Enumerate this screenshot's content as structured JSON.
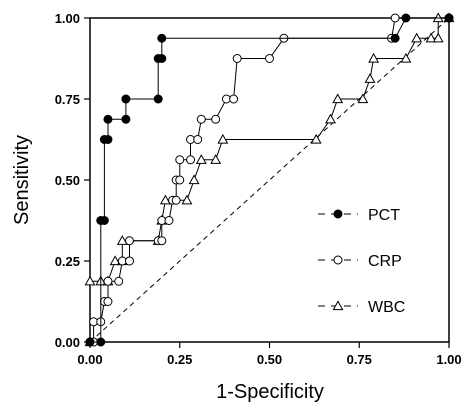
{
  "chart_data": {
    "type": "line",
    "title": "",
    "xlabel": "1-Specificity",
    "ylabel": "Sensitivity",
    "xlim": [
      0,
      1
    ],
    "ylim": [
      0,
      1
    ],
    "grid": false,
    "legend_position": "bottom-right",
    "x_ticks": [
      "0.00",
      "0.25",
      "0.50",
      "0.75",
      "1.00"
    ],
    "y_ticks": [
      "0.00",
      "0.25",
      "0.50",
      "0.75",
      "1.00"
    ],
    "series": [
      {
        "name": "PCT",
        "marker": "filled-circle",
        "line": "solid",
        "color": "#000000",
        "points": [
          [
            0.0,
            0.0
          ],
          [
            0.03,
            0.0
          ],
          [
            0.03,
            0.375
          ],
          [
            0.04,
            0.375
          ],
          [
            0.04,
            0.625
          ],
          [
            0.05,
            0.625
          ],
          [
            0.05,
            0.6875
          ],
          [
            0.1,
            0.6875
          ],
          [
            0.1,
            0.75
          ],
          [
            0.19,
            0.75
          ],
          [
            0.19,
            0.875
          ],
          [
            0.2,
            0.875
          ],
          [
            0.2,
            0.9375
          ],
          [
            0.85,
            0.9375
          ],
          [
            0.88,
            1.0
          ],
          [
            1.0,
            1.0
          ]
        ]
      },
      {
        "name": "CRP",
        "marker": "open-circle",
        "line": "solid",
        "color": "#000000",
        "points": [
          [
            0.0,
            0.0
          ],
          [
            0.01,
            0.0
          ],
          [
            0.01,
            0.0625
          ],
          [
            0.03,
            0.0625
          ],
          [
            0.04,
            0.125
          ],
          [
            0.05,
            0.125
          ],
          [
            0.05,
            0.1875
          ],
          [
            0.08,
            0.1875
          ],
          [
            0.09,
            0.25
          ],
          [
            0.11,
            0.25
          ],
          [
            0.11,
            0.3125
          ],
          [
            0.19,
            0.3125
          ],
          [
            0.2,
            0.3125
          ],
          [
            0.2,
            0.375
          ],
          [
            0.22,
            0.375
          ],
          [
            0.23,
            0.4375
          ],
          [
            0.24,
            0.4375
          ],
          [
            0.24,
            0.5
          ],
          [
            0.25,
            0.5
          ],
          [
            0.25,
            0.5625
          ],
          [
            0.28,
            0.5625
          ],
          [
            0.28,
            0.625
          ],
          [
            0.3,
            0.625
          ],
          [
            0.31,
            0.6875
          ],
          [
            0.35,
            0.6875
          ],
          [
            0.38,
            0.75
          ],
          [
            0.4,
            0.75
          ],
          [
            0.41,
            0.875
          ],
          [
            0.5,
            0.875
          ],
          [
            0.54,
            0.9375
          ],
          [
            0.84,
            0.9375
          ],
          [
            0.85,
            1.0
          ],
          [
            1.0,
            1.0
          ]
        ]
      },
      {
        "name": "WBC",
        "marker": "open-triangle",
        "line": "solid",
        "color": "#000000",
        "points": [
          [
            0.0,
            0.0
          ],
          [
            0.0,
            0.1875
          ],
          [
            0.03,
            0.1875
          ],
          [
            0.05,
            0.1875
          ],
          [
            0.07,
            0.25
          ],
          [
            0.09,
            0.25
          ],
          [
            0.09,
            0.3125
          ],
          [
            0.19,
            0.3125
          ],
          [
            0.2,
            0.375
          ],
          [
            0.21,
            0.4375
          ],
          [
            0.27,
            0.4375
          ],
          [
            0.29,
            0.5
          ],
          [
            0.31,
            0.5625
          ],
          [
            0.35,
            0.5625
          ],
          [
            0.37,
            0.625
          ],
          [
            0.63,
            0.625
          ],
          [
            0.67,
            0.6875
          ],
          [
            0.69,
            0.75
          ],
          [
            0.76,
            0.75
          ],
          [
            0.78,
            0.8125
          ],
          [
            0.79,
            0.875
          ],
          [
            0.88,
            0.875
          ],
          [
            0.91,
            0.9375
          ],
          [
            0.95,
            0.9375
          ],
          [
            0.97,
            0.9375
          ],
          [
            0.97,
            1.0
          ],
          [
            1.0,
            1.0
          ]
        ]
      }
    ],
    "reference_line": {
      "style": "dashed",
      "from": [
        0,
        0
      ],
      "to": [
        1,
        1
      ]
    }
  }
}
